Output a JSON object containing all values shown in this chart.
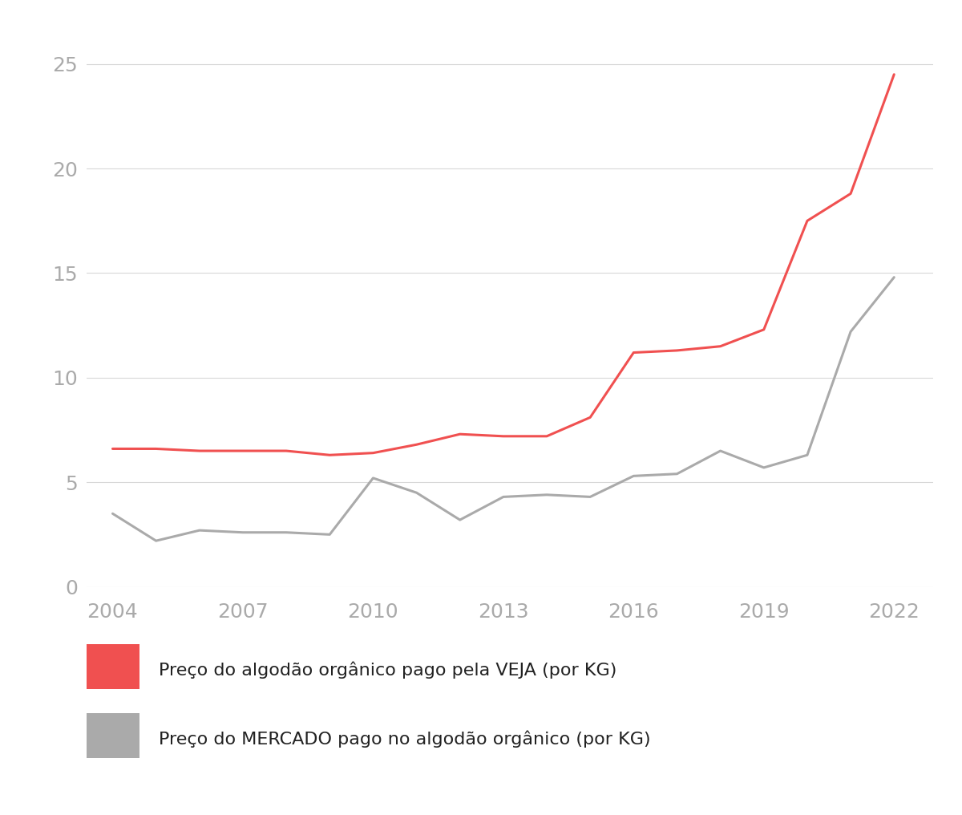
{
  "years": [
    2004,
    2005,
    2006,
    2007,
    2008,
    2009,
    2010,
    2011,
    2012,
    2013,
    2014,
    2015,
    2016,
    2017,
    2018,
    2019,
    2020,
    2021,
    2022
  ],
  "veja_prices": [
    6.6,
    6.6,
    6.5,
    6.5,
    6.5,
    6.3,
    6.4,
    6.8,
    7.3,
    7.2,
    7.2,
    8.1,
    11.2,
    11.3,
    11.5,
    12.3,
    17.5,
    18.8,
    24.5
  ],
  "market_prices": [
    3.5,
    2.2,
    2.7,
    2.6,
    2.6,
    2.5,
    5.2,
    4.5,
    3.2,
    4.3,
    4.4,
    4.3,
    5.3,
    5.4,
    6.5,
    5.7,
    6.3,
    12.2,
    14.8
  ],
  "veja_color": "#f05050",
  "market_color": "#aaaaaa",
  "background_color": "#ffffff",
  "grid_color": "#d8d8d8",
  "yticks": [
    0,
    5,
    10,
    15,
    20,
    25
  ],
  "xticks": [
    2004,
    2007,
    2010,
    2013,
    2016,
    2019,
    2022
  ],
  "ylim": [
    0,
    26.5
  ],
  "xlim": [
    2003.4,
    2022.9
  ],
  "legend_veja": "Preço do algodão orgânico pago pela VEJA (por KG)",
  "legend_market": "Preço do MERCADO pago no algodão orgânico (por KG)",
  "line_width": 2.2,
  "tick_label_color": "#aaaaaa",
  "tick_fontsize": 18,
  "legend_fontsize": 16
}
